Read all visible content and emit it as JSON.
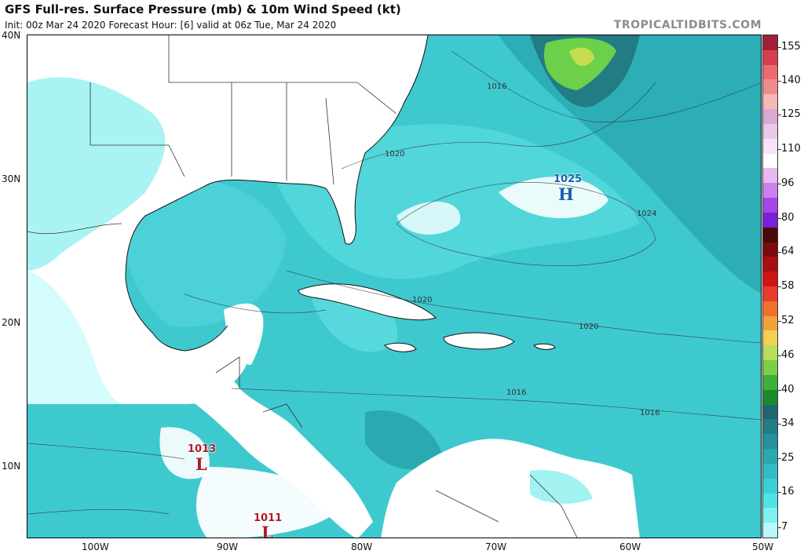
{
  "header": {
    "title": "GFS Full-res. Surface Pressure (mb) & 10m Wind Speed (kt)",
    "subtitle": "Init: 00z Mar 24 2020   Forecast Hour: [6]   valid at 06z Tue, Mar 24 2020",
    "brand": "TROPICALTIDBITS.COM"
  },
  "axes": {
    "lat_labels": [
      "40N",
      "30N",
      "20N",
      "10N"
    ],
    "lon_labels": [
      "100W",
      "90W",
      "80W",
      "70W",
      "60W",
      "50W"
    ]
  },
  "colorbar": {
    "labels": [
      "155",
      "140",
      "125",
      "110",
      "96",
      "80",
      "64",
      "58",
      "52",
      "46",
      "40",
      "34",
      "25",
      "16",
      "7"
    ],
    "colors": [
      "#a0203a",
      "#d9404e",
      "#ee6a70",
      "#f08b8d",
      "#f5b8b6",
      "#d9a8d6",
      "#e9c8ea",
      "#f6e3f6",
      "#ffffff",
      "#e9b8f0",
      "#cc80ee",
      "#a945e8",
      "#7a20d8",
      "#4a0a0a",
      "#7a0c0c",
      "#a80f0f",
      "#d01414",
      "#e83c2c",
      "#f0702c",
      "#f3a13a",
      "#f4d050",
      "#b9de5c",
      "#7cce4a",
      "#3fb035",
      "#1b8a2c",
      "#20666e",
      "#217c84",
      "#24929a",
      "#29a8b0",
      "#30bcc3",
      "#3ad0d6",
      "#4fe2e6",
      "#7ef0f2",
      "#b8fafb"
    ]
  },
  "annotations": {
    "high_1": {
      "value": "1025",
      "letter": "H",
      "color": "#1a5fb0"
    },
    "low_1": {
      "value": "1013",
      "letter": "L",
      "color": "#b01a2a"
    },
    "low_2": {
      "value": "1011",
      "letter": "L",
      "color": "#b01a2a"
    },
    "isobars": [
      "1016",
      "1020",
      "1024",
      "1020",
      "1020",
      "1016",
      "1016"
    ]
  },
  "map_colors": {
    "ocean_base": "#3ec9cf",
    "ocean_light": "#6fe3e6",
    "ocean_dark": "#2aa9b1",
    "land_calm": "#ffffff",
    "land_breeze": "#8cefef",
    "jet_green": "#6cd04a",
    "jet_yellow": "#c8dc50"
  }
}
